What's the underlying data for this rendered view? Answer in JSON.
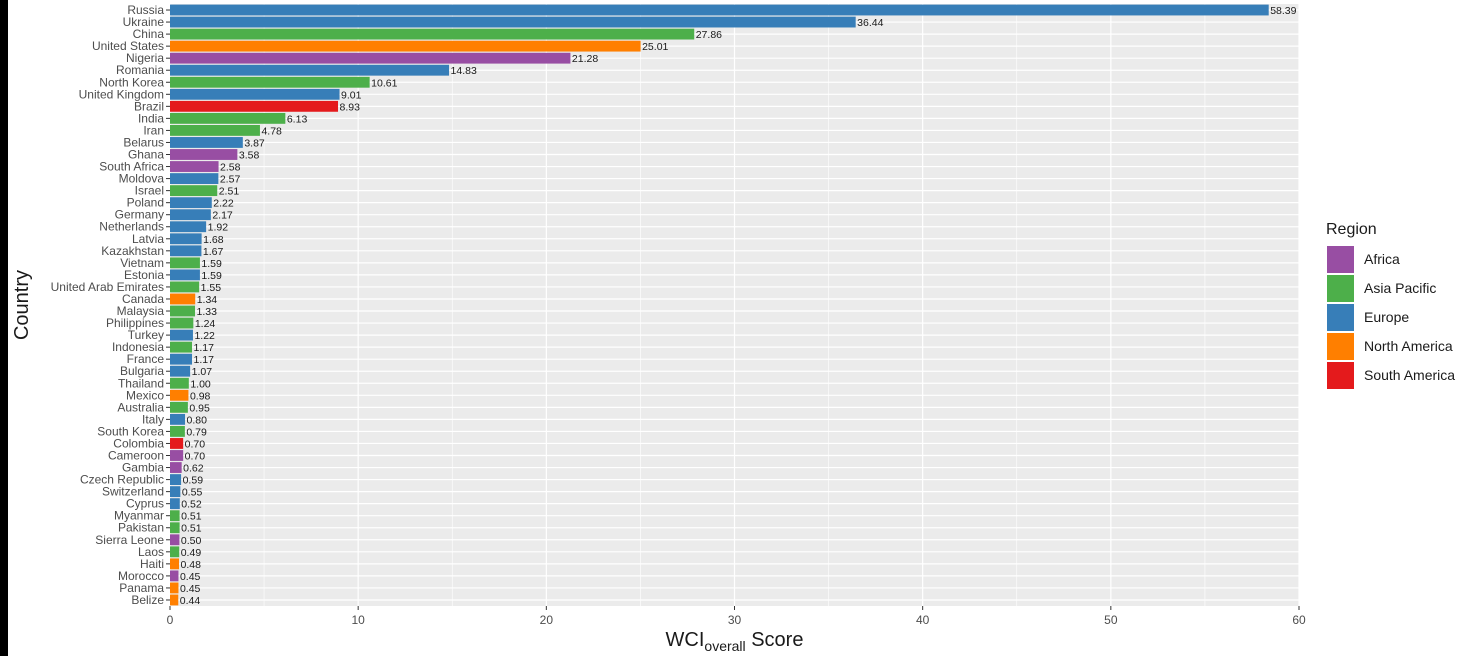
{
  "chart_data": {
    "type": "bar",
    "orientation": "horizontal",
    "xlabel_main": "WCI",
    "xlabel_sub": "overall",
    "xlabel_suffix": " Score",
    "ylabel": "Country",
    "xlim": [
      0,
      60
    ],
    "xticks": [
      0,
      10,
      20,
      30,
      40,
      50,
      60
    ],
    "grid": true,
    "legend": {
      "title": "Region",
      "placement": "right",
      "entries": [
        {
          "name": "Africa",
          "color": "#984EA3"
        },
        {
          "name": "Asia Pacific",
          "color": "#4DAF4A"
        },
        {
          "name": "Europe",
          "color": "#377EB8"
        },
        {
          "name": "North America",
          "color": "#FF7F00"
        },
        {
          "name": "South America",
          "color": "#E41A1C"
        }
      ]
    },
    "bars": [
      {
        "country": "Russia",
        "value": 58.39,
        "label": "58.39",
        "region": "Europe"
      },
      {
        "country": "Ukraine",
        "value": 36.44,
        "label": "36.44",
        "region": "Europe"
      },
      {
        "country": "China",
        "value": 27.86,
        "label": "27.86",
        "region": "Asia Pacific"
      },
      {
        "country": "United States",
        "value": 25.01,
        "label": "25.01",
        "region": "North America"
      },
      {
        "country": "Nigeria",
        "value": 21.28,
        "label": "21.28",
        "region": "Africa"
      },
      {
        "country": "Romania",
        "value": 14.83,
        "label": "14.83",
        "region": "Europe"
      },
      {
        "country": "North Korea",
        "value": 10.61,
        "label": "10.61",
        "region": "Asia Pacific"
      },
      {
        "country": "United Kingdom",
        "value": 9.01,
        "label": "9.01",
        "region": "Europe"
      },
      {
        "country": "Brazil",
        "value": 8.93,
        "label": "8.93",
        "region": "South America"
      },
      {
        "country": "India",
        "value": 6.13,
        "label": "6.13",
        "region": "Asia Pacific"
      },
      {
        "country": "Iran",
        "value": 4.78,
        "label": "4.78",
        "region": "Asia Pacific"
      },
      {
        "country": "Belarus",
        "value": 3.87,
        "label": "3.87",
        "region": "Europe"
      },
      {
        "country": "Ghana",
        "value": 3.58,
        "label": "3.58",
        "region": "Africa"
      },
      {
        "country": "South Africa",
        "value": 2.58,
        "label": "2.58",
        "region": "Africa"
      },
      {
        "country": "Moldova",
        "value": 2.57,
        "label": "2.57",
        "region": "Europe"
      },
      {
        "country": "Israel",
        "value": 2.51,
        "label": "2.51",
        "region": "Asia Pacific"
      },
      {
        "country": "Poland",
        "value": 2.22,
        "label": "2.22",
        "region": "Europe"
      },
      {
        "country": "Germany",
        "value": 2.17,
        "label": "2.17",
        "region": "Europe"
      },
      {
        "country": "Netherlands",
        "value": 1.92,
        "label": "1.92",
        "region": "Europe"
      },
      {
        "country": "Latvia",
        "value": 1.68,
        "label": "1.68",
        "region": "Europe"
      },
      {
        "country": "Kazakhstan",
        "value": 1.67,
        "label": "1.67",
        "region": "Europe"
      },
      {
        "country": "Vietnam",
        "value": 1.59,
        "label": "1.59",
        "region": "Asia Pacific"
      },
      {
        "country": "Estonia",
        "value": 1.59,
        "label": "1.59",
        "region": "Europe"
      },
      {
        "country": "United Arab Emirates",
        "value": 1.55,
        "label": "1.55",
        "region": "Asia Pacific"
      },
      {
        "country": "Canada",
        "value": 1.34,
        "label": "1.34",
        "region": "North America"
      },
      {
        "country": "Malaysia",
        "value": 1.33,
        "label": "1.33",
        "region": "Asia Pacific"
      },
      {
        "country": "Philippines",
        "value": 1.24,
        "label": "1.24",
        "region": "Asia Pacific"
      },
      {
        "country": "Turkey",
        "value": 1.22,
        "label": "1.22",
        "region": "Europe"
      },
      {
        "country": "Indonesia",
        "value": 1.17,
        "label": "1.17",
        "region": "Asia Pacific"
      },
      {
        "country": "France",
        "value": 1.17,
        "label": "1.17",
        "region": "Europe"
      },
      {
        "country": "Bulgaria",
        "value": 1.07,
        "label": "1.07",
        "region": "Europe"
      },
      {
        "country": "Thailand",
        "value": 1.0,
        "label": "1.00",
        "region": "Asia Pacific"
      },
      {
        "country": "Mexico",
        "value": 0.98,
        "label": "0.98",
        "region": "North America"
      },
      {
        "country": "Australia",
        "value": 0.95,
        "label": "0.95",
        "region": "Asia Pacific"
      },
      {
        "country": "Italy",
        "value": 0.8,
        "label": "0.80",
        "region": "Europe"
      },
      {
        "country": "South Korea",
        "value": 0.79,
        "label": "0.79",
        "region": "Asia Pacific"
      },
      {
        "country": "Colombia",
        "value": 0.7,
        "label": "0.70",
        "region": "South America"
      },
      {
        "country": "Cameroon",
        "value": 0.7,
        "label": "0.70",
        "region": "Africa"
      },
      {
        "country": "Gambia",
        "value": 0.62,
        "label": "0.62",
        "region": "Africa"
      },
      {
        "country": "Czech Republic",
        "value": 0.59,
        "label": "0.59",
        "region": "Europe"
      },
      {
        "country": "Switzerland",
        "value": 0.55,
        "label": "0.55",
        "region": "Europe"
      },
      {
        "country": "Cyprus",
        "value": 0.52,
        "label": "0.52",
        "region": "Europe"
      },
      {
        "country": "Myanmar",
        "value": 0.51,
        "label": "0.51",
        "region": "Asia Pacific"
      },
      {
        "country": "Pakistan",
        "value": 0.51,
        "label": "0.51",
        "region": "Asia Pacific"
      },
      {
        "country": "Sierra Leone",
        "value": 0.5,
        "label": "0.50",
        "region": "Africa"
      },
      {
        "country": "Laos",
        "value": 0.49,
        "label": "0.49",
        "region": "Asia Pacific"
      },
      {
        "country": "Haiti",
        "value": 0.48,
        "label": "0.48",
        "region": "North America"
      },
      {
        "country": "Morocco",
        "value": 0.45,
        "label": "0.45",
        "region": "Africa"
      },
      {
        "country": "Panama",
        "value": 0.45,
        "label": "0.45",
        "region": "North America"
      },
      {
        "country": "Belize",
        "value": 0.44,
        "label": "0.44",
        "region": "North America"
      }
    ]
  }
}
